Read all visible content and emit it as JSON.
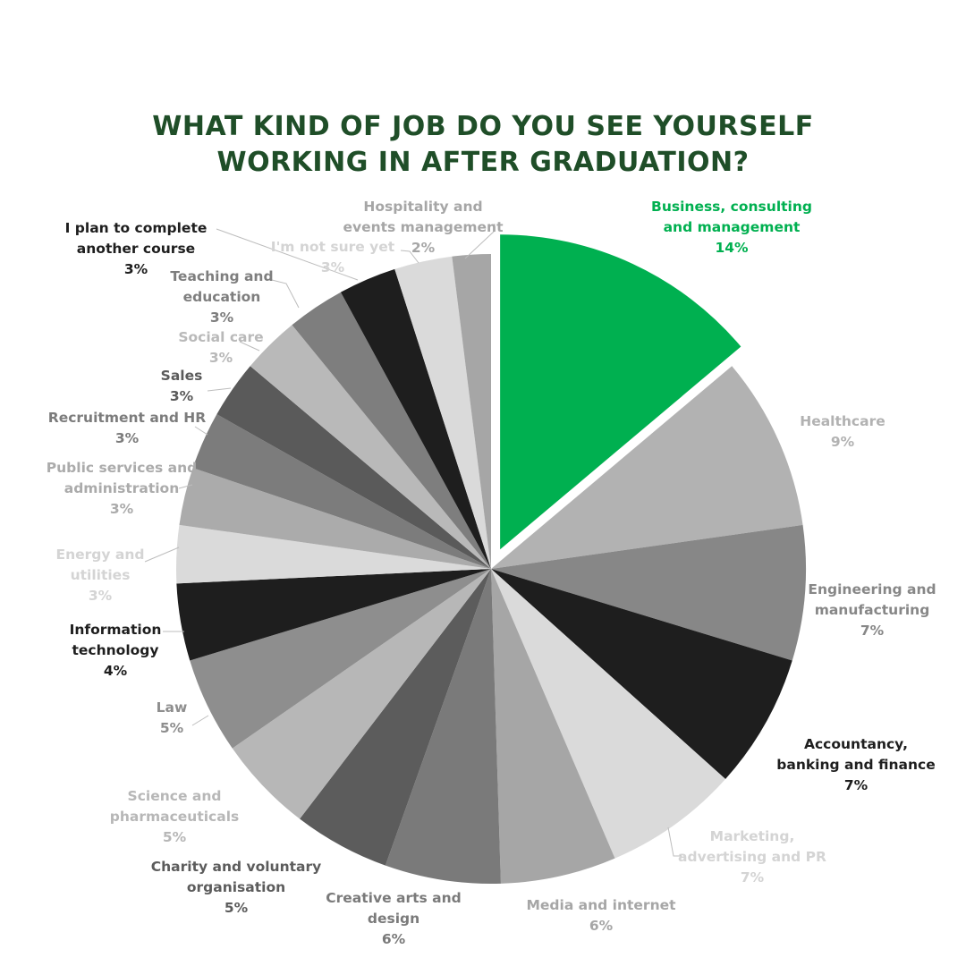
{
  "chart_data": {
    "type": "pie",
    "title": [
      "WHAT KIND OF JOB DO YOU SEE YOURSELF",
      "WORKING IN AFTER GRADUATION?"
    ],
    "value_suffix": "%",
    "slices": [
      {
        "label": "Business, consulting and management",
        "lines": [
          "Business, consulting",
          "and management"
        ],
        "value": 14,
        "display": "14%",
        "color": "#00b050",
        "label_color": "#00b050",
        "exploded": true
      },
      {
        "label": "Healthcare",
        "lines": [
          "Healthcare"
        ],
        "value": 9,
        "display": "9%",
        "color": "#b2b2b2",
        "label_color": "#b2b2b2"
      },
      {
        "label": "Engineering and manufacturing",
        "lines": [
          "Engineering and",
          "manufacturing"
        ],
        "value": 7,
        "display": "7%",
        "color": "#878787",
        "label_color": "#878787"
      },
      {
        "label": "Accountancy, banking and finance",
        "lines": [
          "Accountancy,",
          "banking and finance"
        ],
        "value": 7,
        "display": "7%",
        "color": "#1e1e1e",
        "label_color": "#1e1e1e"
      },
      {
        "label": "Marketing, advertising and PR",
        "lines": [
          "Marketing,",
          "advertising and PR"
        ],
        "value": 7,
        "display": "7%",
        "color": "#dadada",
        "label_color": "#d4d4d4"
      },
      {
        "label": "Media and internet",
        "lines": [
          "Media and internet"
        ],
        "value": 6,
        "display": "6%",
        "color": "#a6a6a6",
        "label_color": "#a6a6a6"
      },
      {
        "label": "Creative arts and design",
        "lines": [
          "Creative arts and",
          "design"
        ],
        "value": 6,
        "display": "6%",
        "color": "#7a7a7a",
        "label_color": "#7a7a7a"
      },
      {
        "label": "Charity and voluntary organisation",
        "lines": [
          "Charity and voluntary",
          "organisation"
        ],
        "value": 5,
        "display": "5%",
        "color": "#5c5c5c",
        "label_color": "#5c5c5c"
      },
      {
        "label": "Science and pharmaceuticals",
        "lines": [
          "Science and",
          "pharmaceuticals"
        ],
        "value": 5,
        "display": "5%",
        "color": "#b7b7b7",
        "label_color": "#b7b7b7"
      },
      {
        "label": "Law",
        "lines": [
          "Law"
        ],
        "value": 5,
        "display": "5%",
        "color": "#8e8e8e",
        "label_color": "#8e8e8e"
      },
      {
        "label": "Information technology",
        "lines": [
          "Information",
          "technology"
        ],
        "value": 4,
        "display": "4%",
        "color": "#1e1e1e",
        "label_color": "#1e1e1e"
      },
      {
        "label": "Energy and utilities",
        "lines": [
          "Energy and",
          "utilities"
        ],
        "value": 3,
        "display": "3%",
        "color": "#dadada",
        "label_color": "#d4d4d4"
      },
      {
        "label": "Public services and administration",
        "lines": [
          "Public services and",
          "administration"
        ],
        "value": 3,
        "display": "3%",
        "color": "#ababab",
        "label_color": "#ababab"
      },
      {
        "label": "Recruitment and HR",
        "lines": [
          "Recruitment and HR"
        ],
        "value": 3,
        "display": "3%",
        "color": "#7c7c7c",
        "label_color": "#7c7c7c"
      },
      {
        "label": "Sales",
        "lines": [
          "Sales"
        ],
        "value": 3,
        "display": "3%",
        "color": "#5a5a5a",
        "label_color": "#5a5a5a"
      },
      {
        "label": "Social care",
        "lines": [
          "Social care"
        ],
        "value": 3,
        "display": "3%",
        "color": "#b9b9b9",
        "label_color": "#b9b9b9"
      },
      {
        "label": "Teaching and education",
        "lines": [
          "Teaching and",
          "education"
        ],
        "value": 3,
        "display": "3%",
        "color": "#7e7e7e",
        "label_color": "#7e7e7e"
      },
      {
        "label": "I plan to complete another course",
        "lines": [
          "I plan to complete",
          "another course"
        ],
        "value": 3,
        "display": "3%",
        "color": "#1e1e1e",
        "label_color": "#1e1e1e"
      },
      {
        "label": "I'm not sure yet",
        "lines": [
          "I'm not sure yet"
        ],
        "value": 3,
        "display": "3%",
        "color": "#dadada",
        "label_color": "#d4d4d4"
      },
      {
        "label": "Hospitality and events management",
        "lines": [
          "Hospitality and",
          "events management"
        ],
        "value": 2,
        "display": "2%",
        "color": "#a6a6a6",
        "label_color": "#a6a6a6"
      }
    ],
    "legend": "none",
    "grid": false
  },
  "colors": {
    "title": "#1f4e28",
    "accent": "#00b050",
    "leader": "#bdbdbd"
  }
}
